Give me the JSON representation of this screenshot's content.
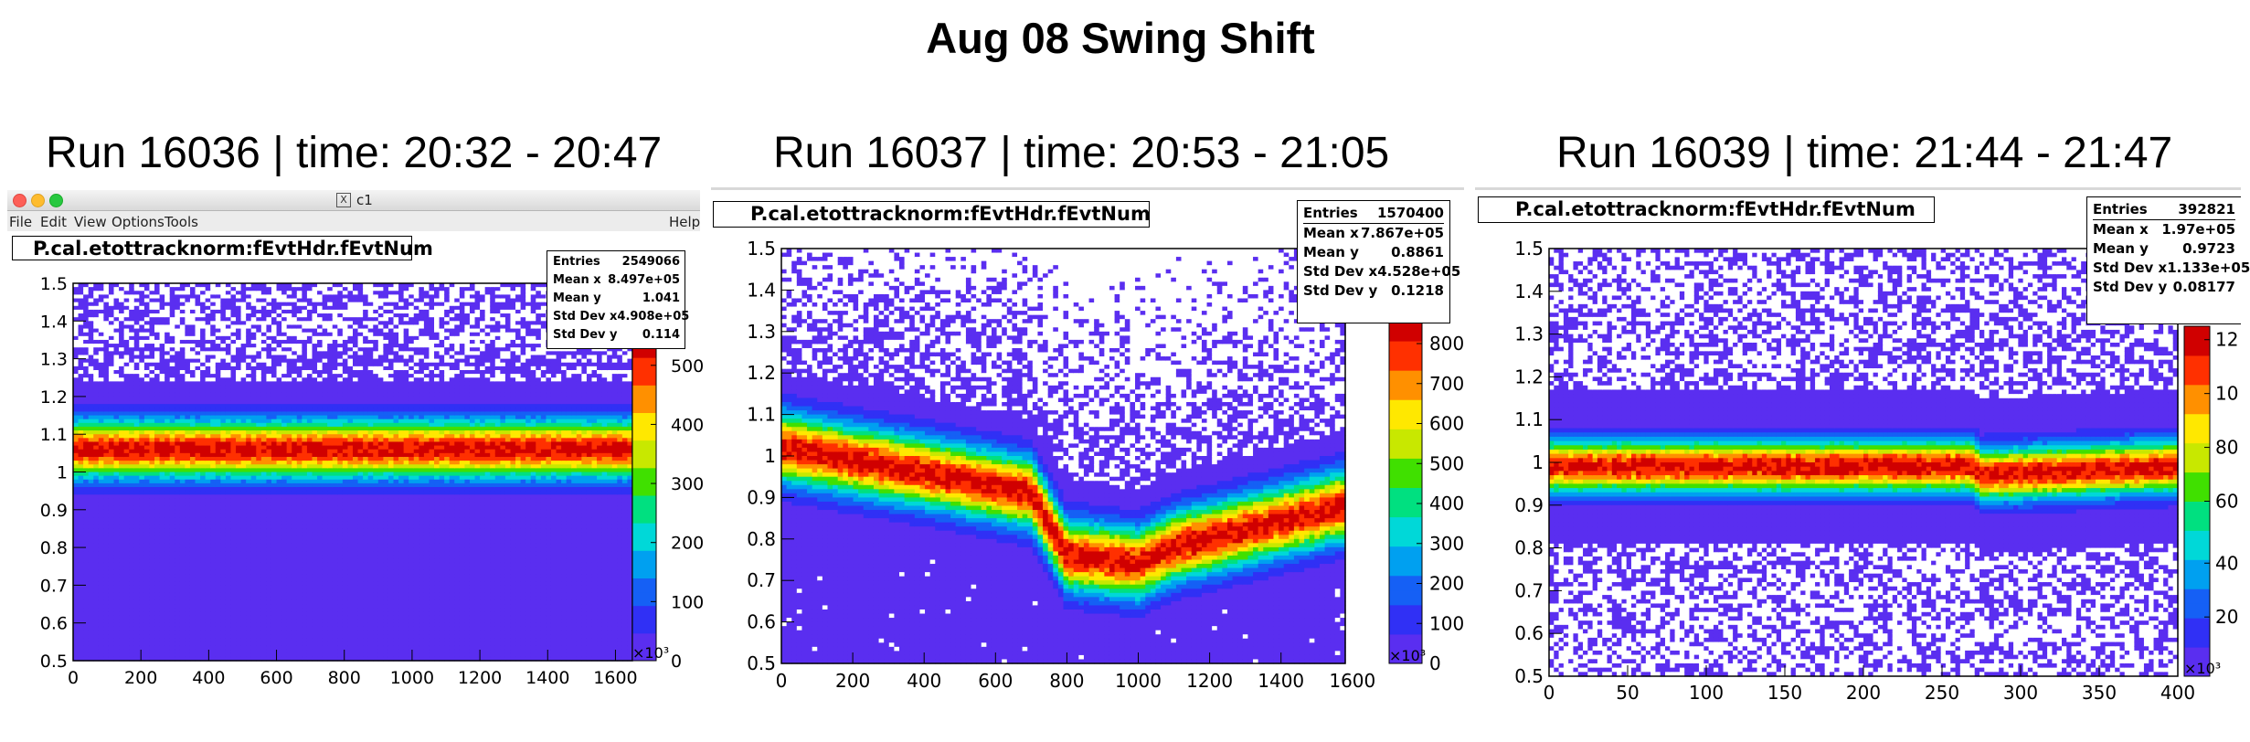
{
  "page_title": "Aug 08 Swing Shift",
  "window": {
    "title": "c1",
    "menu": [
      "File",
      "Edit",
      "View",
      "Options",
      "Tools"
    ],
    "help": "Help"
  },
  "panels": [
    {
      "run_label": "Run 16036 | time: 20:32 - 20:47",
      "hist_title": "P.cal.etottracknorm:fEvtHdr.fEvtNum",
      "stats": [
        {
          "label": "Entries",
          "value": "2549066"
        },
        {
          "label": "Mean x",
          "value": "8.497e+05"
        },
        {
          "label": "Mean y",
          "value": "1.041"
        },
        {
          "label": "Std Dev x",
          "value": "4.908e+05"
        },
        {
          "label": "Std Dev y",
          "value": "0.114"
        }
      ]
    },
    {
      "run_label": "Run 16037 | time: 20:53 - 21:05",
      "hist_title": "P.cal.etottracknorm:fEvtHdr.fEvtNum",
      "stats": [
        {
          "label": "Entries",
          "value": "1570400"
        },
        {
          "label": "Mean x",
          "value": "7.867e+05"
        },
        {
          "label": "Mean y",
          "value": "0.8861"
        },
        {
          "label": "Std Dev x",
          "value": "4.528e+05"
        },
        {
          "label": "Std Dev y",
          "value": "0.1218"
        }
      ]
    },
    {
      "run_label": "Run 16039 | time: 21:44 - 21:47",
      "hist_title": "P.cal.etottracknorm:fEvtHdr.fEvtNum",
      "stats": [
        {
          "label": "Entries",
          "value": "392821"
        },
        {
          "label": "Mean x",
          "value": "1.97e+05"
        },
        {
          "label": "Mean y",
          "value": "0.9723"
        },
        {
          "label": "Std Dev x",
          "value": "1.133e+05"
        },
        {
          "label": "Std Dev y",
          "value": "0.08177"
        }
      ]
    }
  ],
  "chart_data": [
    {
      "type": "heatmap",
      "title": "P.cal.etottracknorm:fEvtHdr.fEvtNum",
      "x_multiplier_label": "×10³",
      "xlim": [
        0,
        1650
      ],
      "ylim": [
        0.5,
        1.5
      ],
      "x_ticks": [
        "0",
        "200",
        "400",
        "600",
        "800",
        "1000",
        "1200",
        "1400",
        "1600"
      ],
      "y_ticks": [
        "0.5",
        "0.6",
        "0.7",
        "0.8",
        "0.9",
        "1",
        "1.1",
        "1.2",
        "1.3",
        "1.4",
        "1.5"
      ],
      "z_ticks": [
        "0",
        "100",
        "200",
        "300",
        "400",
        "500"
      ],
      "z_max": 560,
      "band": {
        "center_y": [
          [
            0,
            1.06
          ],
          [
            1650,
            1.06
          ]
        ],
        "width_y": 0.05,
        "peak": 520,
        "noise": 0.04
      },
      "palette": [
        "#5a2ef0",
        "#3030f5",
        "#1560f5",
        "#00a0f0",
        "#00d8d8",
        "#00e080",
        "#40e000",
        "#c8e800",
        "#ffe800",
        "#ff9000",
        "#ff3000",
        "#d00000"
      ]
    },
    {
      "type": "heatmap",
      "title": "P.cal.etottracknorm:fEvtHdr.fEvtNum",
      "x_multiplier_label": "×10³",
      "xlim": [
        0,
        1580
      ],
      "ylim": [
        0.5,
        1.5
      ],
      "x_ticks": [
        "0",
        "200",
        "400",
        "600",
        "800",
        "1000",
        "1200",
        "1400",
        "1600"
      ],
      "y_ticks": [
        "0.5",
        "0.6",
        "0.7",
        "0.8",
        "0.9",
        "1",
        "1.1",
        "1.2",
        "1.3",
        "1.4",
        "1.5"
      ],
      "z_ticks": [
        "0",
        "100",
        "200",
        "300",
        "400",
        "500",
        "600",
        "700",
        "800"
      ],
      "z_max": 880,
      "band": {
        "center_y": [
          [
            0,
            1.02
          ],
          [
            400,
            0.96
          ],
          [
            700,
            0.91
          ],
          [
            760,
            0.82
          ],
          [
            800,
            0.76
          ],
          [
            1000,
            0.74
          ],
          [
            1100,
            0.78
          ],
          [
            1580,
            0.88
          ]
        ],
        "width_y": 0.055,
        "peak": 850,
        "noise": 0.06
      },
      "palette": [
        "#5a2ef0",
        "#3030f5",
        "#1560f5",
        "#00a0f0",
        "#00d8d8",
        "#00e080",
        "#40e000",
        "#c8e800",
        "#ffe800",
        "#ff9000",
        "#ff3000",
        "#d00000"
      ]
    },
    {
      "type": "heatmap",
      "title": "P.cal.etottracknorm:fEvtHdr.fEvtNum",
      "x_multiplier_label": "×10³",
      "xlim": [
        0,
        400
      ],
      "ylim": [
        0.5,
        1.5
      ],
      "x_ticks": [
        "0",
        "50",
        "100",
        "150",
        "200",
        "250",
        "300",
        "350",
        "400"
      ],
      "y_ticks": [
        "0.5",
        "0.6",
        "0.7",
        "0.8",
        "0.9",
        "1",
        "1.1",
        "1.2",
        "1.3",
        "1.4",
        "1.5"
      ],
      "z_ticks": [
        "12",
        "10",
        "80",
        "60",
        "40",
        "20"
      ],
      "z_max": 130,
      "band": {
        "center_y": [
          [
            0,
            0.99
          ],
          [
            270,
            0.99
          ],
          [
            275,
            0.97
          ],
          [
            395,
            0.99
          ]
        ],
        "width_y": 0.04,
        "peak": 120,
        "noise": 0.14
      },
      "palette": [
        "#5a2ef0",
        "#3030f5",
        "#1560f5",
        "#00a0f0",
        "#00d8d8",
        "#00e080",
        "#40e000",
        "#c8e800",
        "#ffe800",
        "#ff9000",
        "#ff3000",
        "#d00000"
      ]
    }
  ]
}
